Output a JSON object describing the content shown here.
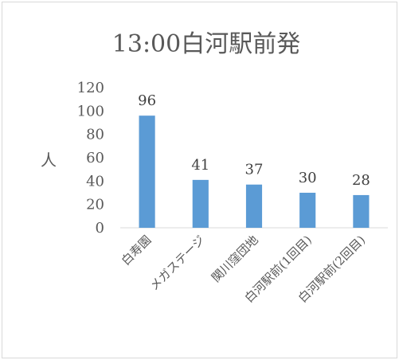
{
  "chart_data": {
    "type": "bar",
    "title": "13:00白河駅前発",
    "ylabel": "人",
    "xlabel": "",
    "categories": [
      "白寿園",
      "メガステージ",
      "関川窪団地",
      "白河駅前(1回目)",
      "白河駅前(2回目)"
    ],
    "values": [
      96,
      41,
      37,
      30,
      28
    ],
    "ylim": [
      0,
      120
    ],
    "yticks": [
      0,
      20,
      40,
      60,
      80,
      100,
      120
    ],
    "bar_color": "#5b9bd5",
    "grid": false,
    "legend": "none",
    "data_labels": true
  }
}
